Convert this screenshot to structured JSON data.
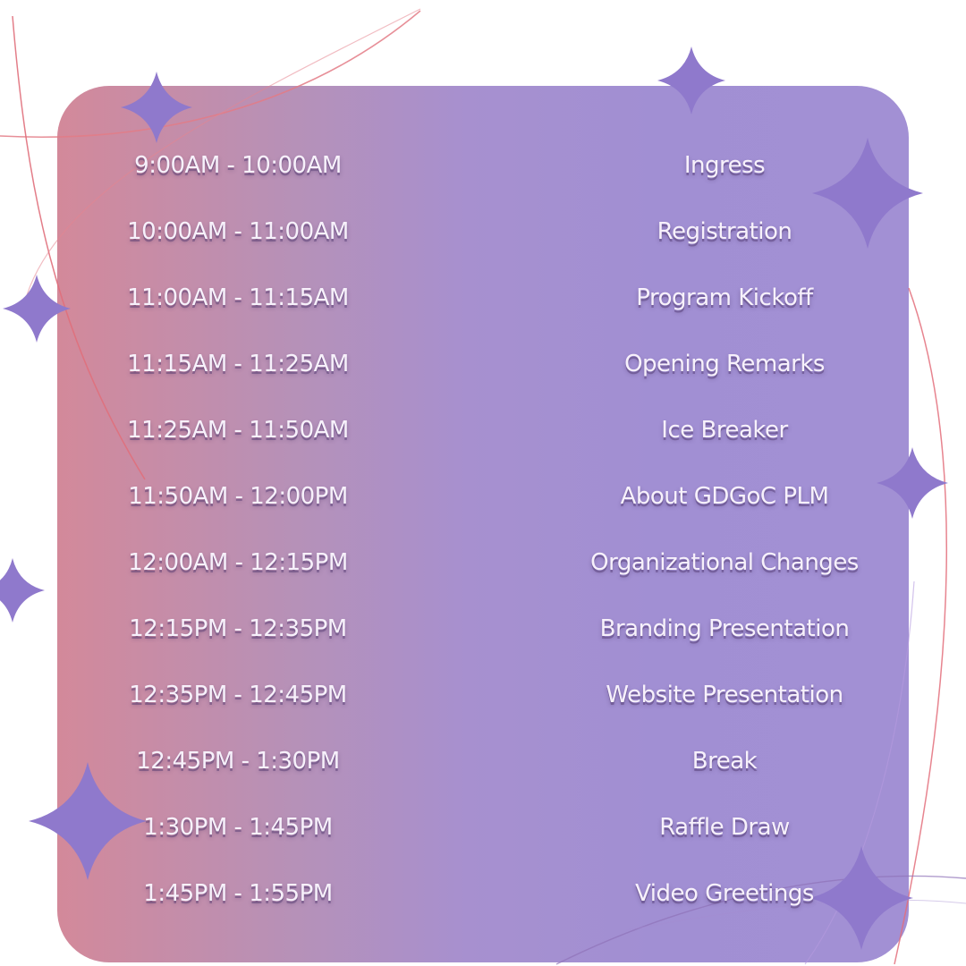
{
  "colors": {
    "card_gradient_start": "#d3899a",
    "card_gradient_end": "#a290d4",
    "text": "#f7f1fb",
    "sparkle": "#8f79cc",
    "accent_curve": "#e0707a"
  },
  "decorations": {
    "sparkle_icon": "four-point-star-icon"
  },
  "schedule": [
    {
      "time": "9:00AM - 10:00AM",
      "event": "Ingress"
    },
    {
      "time": "10:00AM - 11:00AM",
      "event": "Registration"
    },
    {
      "time": "11:00AM - 11:15AM",
      "event": "Program Kickoff"
    },
    {
      "time": "11:15AM - 11:25AM",
      "event": "Opening Remarks"
    },
    {
      "time": "11:25AM - 11:50AM",
      "event": "Ice Breaker"
    },
    {
      "time": "11:50AM - 12:00PM",
      "event": "About GDGoC PLM"
    },
    {
      "time": "12:00AM - 12:15PM",
      "event": "Organizational Changes"
    },
    {
      "time": "12:15PM - 12:35PM",
      "event": "Branding Presentation"
    },
    {
      "time": "12:35PM - 12:45PM",
      "event": "Website Presentation"
    },
    {
      "time": "12:45PM - 1:30PM",
      "event": "Break"
    },
    {
      "time": "1:30PM - 1:45PM",
      "event": "Raffle Draw"
    },
    {
      "time": "1:45PM - 1:55PM",
      "event": "Video Greetings"
    }
  ]
}
